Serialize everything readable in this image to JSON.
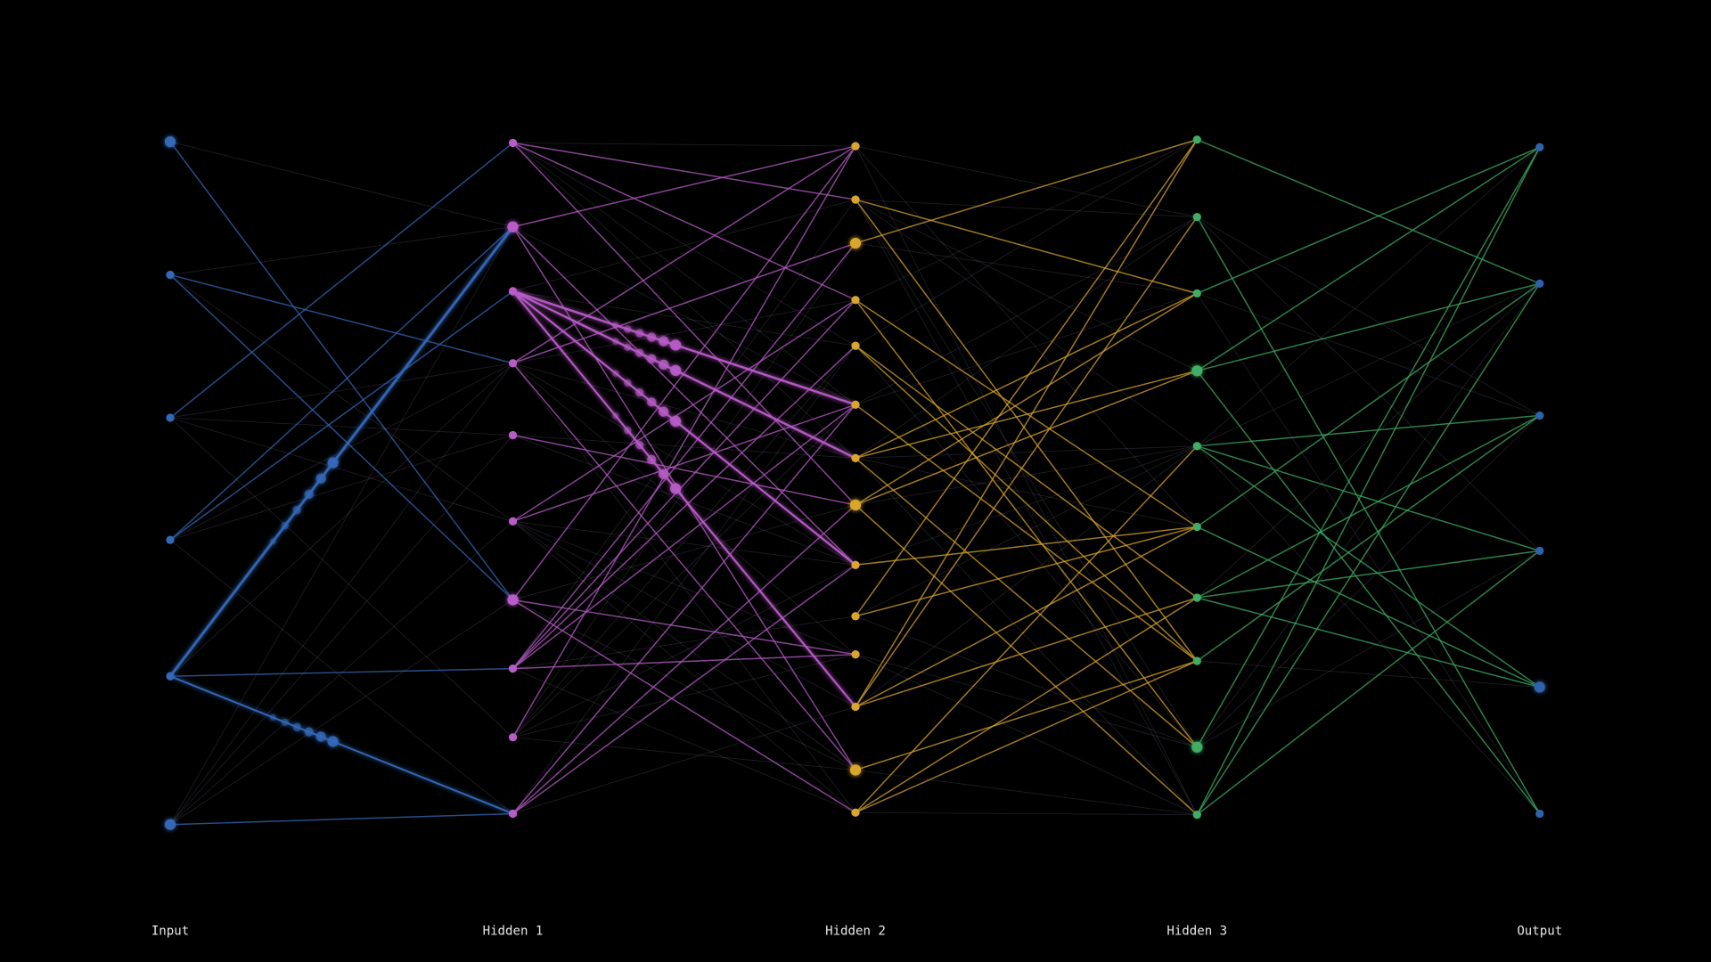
{
  "layers": [
    {
      "label": "Input"
    },
    {
      "label": "Hidden 1"
    },
    {
      "label": "Hidden 2"
    },
    {
      "label": "Hidden 3"
    },
    {
      "label": "Output"
    }
  ]
}
